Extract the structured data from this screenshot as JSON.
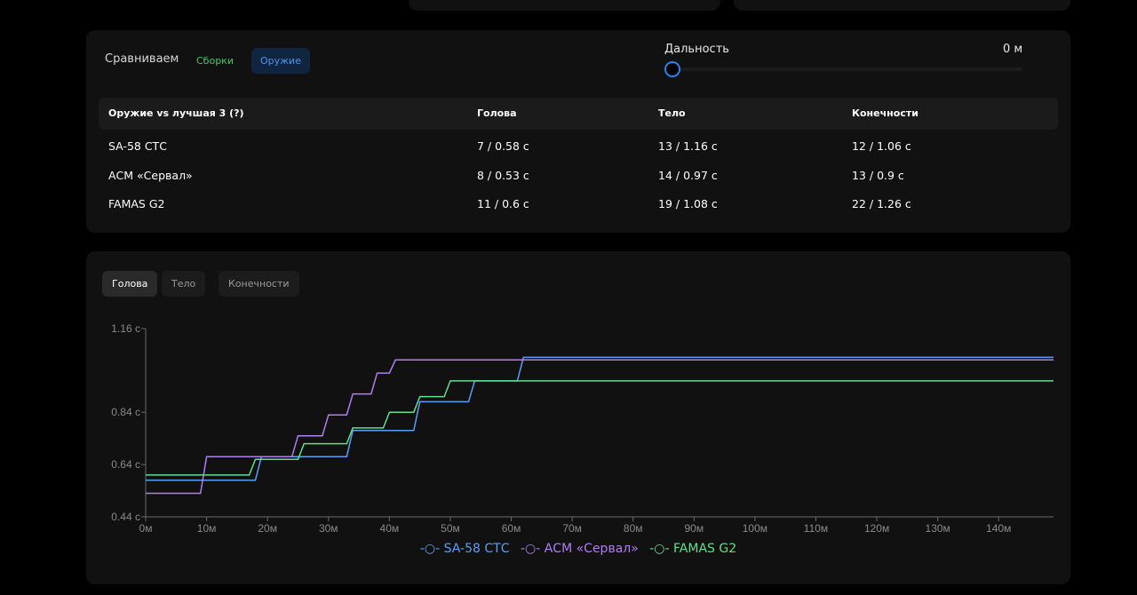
{
  "compare": {
    "label": "Сравниваем",
    "builds_label": "Сборки",
    "weapons_label": "Оружие",
    "range_label": "Дальность",
    "range_value": "0 м",
    "range_fraction": 0
  },
  "table": {
    "headers": [
      "Оружие vs лучшая 3 (?)",
      "Голова",
      "Тело",
      "Конечности"
    ],
    "rows": [
      [
        "SA-58 СТС",
        "7 / 0.58 с",
        "13 / 1.16 с",
        "12 / 1.06 с"
      ],
      [
        "АСМ «Сервал»",
        "8 / 0.53 с",
        "14 / 0.97 с",
        "13 / 0.9 с"
      ],
      [
        "FAMAS G2",
        "11 / 0.6 с",
        "19 / 1.08 с",
        "22 / 1.26 с"
      ]
    ]
  },
  "tabs": [
    "Голова",
    "Тело",
    "Конечности"
  ],
  "chart_data": {
    "type": "line",
    "step": true,
    "xlabel": "",
    "ylabel": "",
    "xlim": [
      0,
      149
    ],
    "ylim": [
      0.44,
      1.16
    ],
    "x_ticks": [
      "0м",
      "10м",
      "20м",
      "30м",
      "40м",
      "50м",
      "60м",
      "70м",
      "80м",
      "90м",
      "100м",
      "110м",
      "120м",
      "130м",
      "140м"
    ],
    "x_tick_values": [
      0,
      10,
      20,
      30,
      40,
      50,
      60,
      70,
      80,
      90,
      100,
      110,
      120,
      130,
      140
    ],
    "y_ticks": [
      "0.44 с",
      "0.64 с",
      "0.84 с",
      "1.16 с"
    ],
    "y_tick_values": [
      0.44,
      0.64,
      0.84,
      1.16
    ],
    "grid": false,
    "legend_position": "bottom",
    "series": [
      {
        "name": "SA-58 СТС",
        "color": "#5b9ef5",
        "x": [
          0,
          18,
          19,
          33,
          34,
          44,
          45,
          53,
          54,
          61,
          62,
          149
        ],
        "y": [
          0.58,
          0.58,
          0.67,
          0.67,
          0.77,
          0.77,
          0.88,
          0.88,
          0.96,
          0.96,
          1.05,
          1.05
        ]
      },
      {
        "name": "АСМ «Сервал»",
        "color": "#b07df2",
        "x": [
          0,
          9,
          10,
          24,
          25,
          29,
          30,
          33,
          34,
          37,
          38,
          40,
          41,
          149
        ],
        "y": [
          0.53,
          0.53,
          0.67,
          0.67,
          0.75,
          0.75,
          0.83,
          0.83,
          0.91,
          0.91,
          0.99,
          0.99,
          1.04,
          1.04
        ]
      },
      {
        "name": "FAMAS G2",
        "color": "#5fe08a",
        "x": [
          0,
          17,
          18,
          25,
          26,
          33,
          34,
          39,
          40,
          44,
          45,
          49,
          50,
          149
        ],
        "y": [
          0.6,
          0.6,
          0.66,
          0.66,
          0.72,
          0.72,
          0.78,
          0.78,
          0.84,
          0.84,
          0.9,
          0.9,
          0.96,
          0.96
        ]
      }
    ]
  }
}
